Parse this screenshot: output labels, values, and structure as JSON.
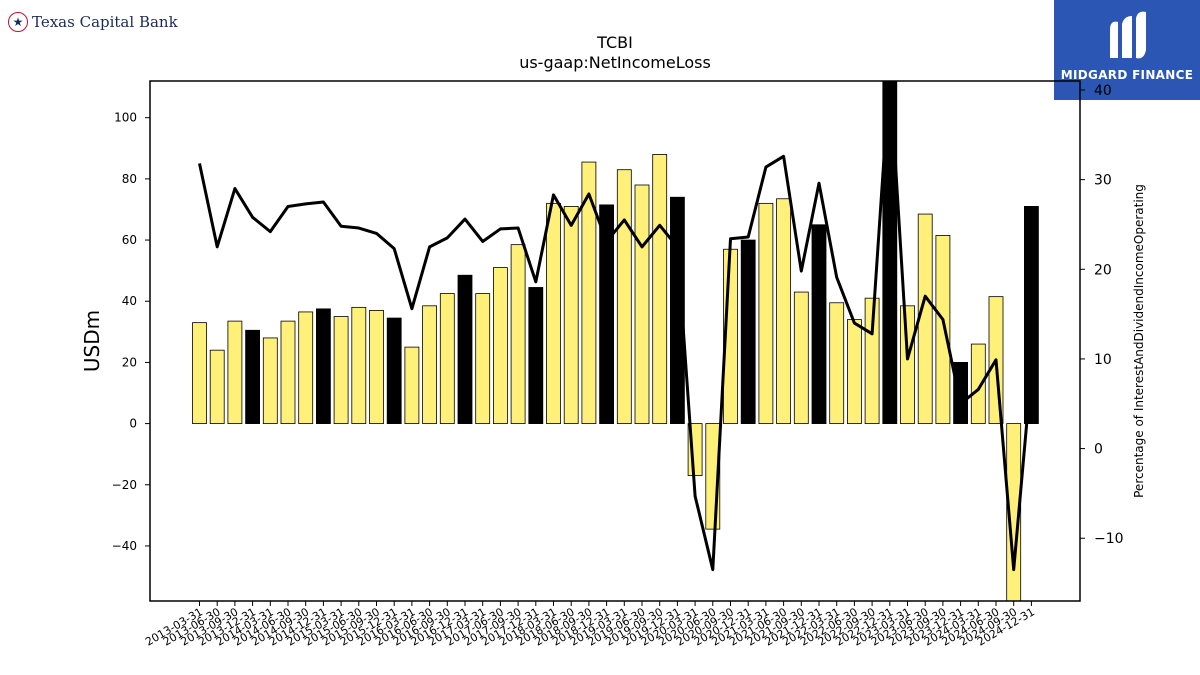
{
  "header": {
    "bank_name": "Texas Capital Bank",
    "logo_icon": "star-icon",
    "sponsor_name": "MIDGARD FINANCE",
    "sponsor_icon": "midgard-mark-icon",
    "sponsor_color": "#2b56b3"
  },
  "chart_data": {
    "type": "bar",
    "title": "TCBI",
    "subtitle": "us-gaap:NetIncomeLoss",
    "ylabel": "USDm",
    "y2label": "Percentage of InterestAndDividendIncomeOperating",
    "ylim": [
      -58,
      112
    ],
    "y2lim": [
      -17,
      41
    ],
    "yticks": [
      -40,
      -20,
      0,
      20,
      40,
      60,
      80,
      100
    ],
    "y2ticks": [
      -10,
      0,
      10,
      20,
      30,
      40
    ],
    "colors": {
      "annual_bar": "#000000",
      "quarter_bar": "#fff07a",
      "bar_edge": "#000000",
      "line": "#000000"
    },
    "categories": [
      "2013-03-31",
      "2013-06-30",
      "2013-09-30",
      "2013-12-31",
      "2014-03-31",
      "2014-06-30",
      "2014-09-30",
      "2014-12-31",
      "2015-03-31",
      "2015-06-30",
      "2015-09-30",
      "2015-12-31",
      "2016-03-31",
      "2016-06-30",
      "2016-09-30",
      "2016-12-31",
      "2017-03-31",
      "2017-06-30",
      "2017-09-30",
      "2017-12-31",
      "2018-03-31",
      "2018-06-30",
      "2018-09-30",
      "2018-12-31",
      "2019-03-31",
      "2019-06-30",
      "2019-09-30",
      "2019-12-31",
      "2020-03-31",
      "2020-06-30",
      "2020-09-30",
      "2020-12-31",
      "2021-03-31",
      "2021-06-30",
      "2021-09-30",
      "2021-12-31",
      "2022-03-31",
      "2022-06-30",
      "2022-09-30",
      "2022-12-31",
      "2023-03-31",
      "2023-06-30",
      "2023-09-30",
      "2023-12-31",
      "2024-03-31",
      "2024-06-30",
      "2024-09-30",
      "2024-12-31"
    ],
    "series": [
      {
        "type": "bar",
        "values": [
          33,
          24,
          33.5,
          30.5,
          28,
          33.5,
          36.5,
          37.5,
          35,
          38,
          37,
          34.5,
          25,
          38.5,
          42.5,
          48.5,
          42.5,
          51,
          58.5,
          44.5,
          72,
          71,
          85.5,
          71.5,
          83,
          78,
          88,
          74,
          -17,
          -34.5,
          57,
          60,
          72,
          73.5,
          43,
          65,
          39.5,
          34,
          41,
          112,
          38.5,
          68.5,
          61.5,
          20,
          26,
          41.5,
          -58,
          71
        ],
        "highlight": [
          false,
          false,
          false,
          true,
          false,
          false,
          false,
          true,
          false,
          false,
          false,
          true,
          false,
          false,
          false,
          true,
          false,
          false,
          false,
          true,
          false,
          false,
          false,
          true,
          false,
          false,
          false,
          true,
          false,
          false,
          false,
          true,
          false,
          false,
          false,
          true,
          false,
          false,
          false,
          true,
          false,
          false,
          false,
          true,
          false,
          false,
          false,
          true
        ]
      },
      {
        "type": "line",
        "axis": "right",
        "values": [
          31.8,
          22.5,
          29,
          25.8,
          24.2,
          27,
          27.3,
          27.5,
          24.8,
          24.6,
          24,
          22.3,
          15.6,
          22.5,
          23.5,
          25.6,
          23.1,
          24.5,
          24.6,
          18.6,
          28.3,
          24.9,
          28.4,
          23.1,
          25.5,
          22.5,
          24.9,
          22.5,
          -5.3,
          -13.5,
          23.4,
          23.6,
          31.4,
          32.6,
          19.8,
          29.6,
          19.1,
          14,
          12.8,
          42,
          10,
          17,
          14.4,
          5,
          6.6,
          9.9,
          -13.5,
          8.7
        ]
      }
    ]
  }
}
